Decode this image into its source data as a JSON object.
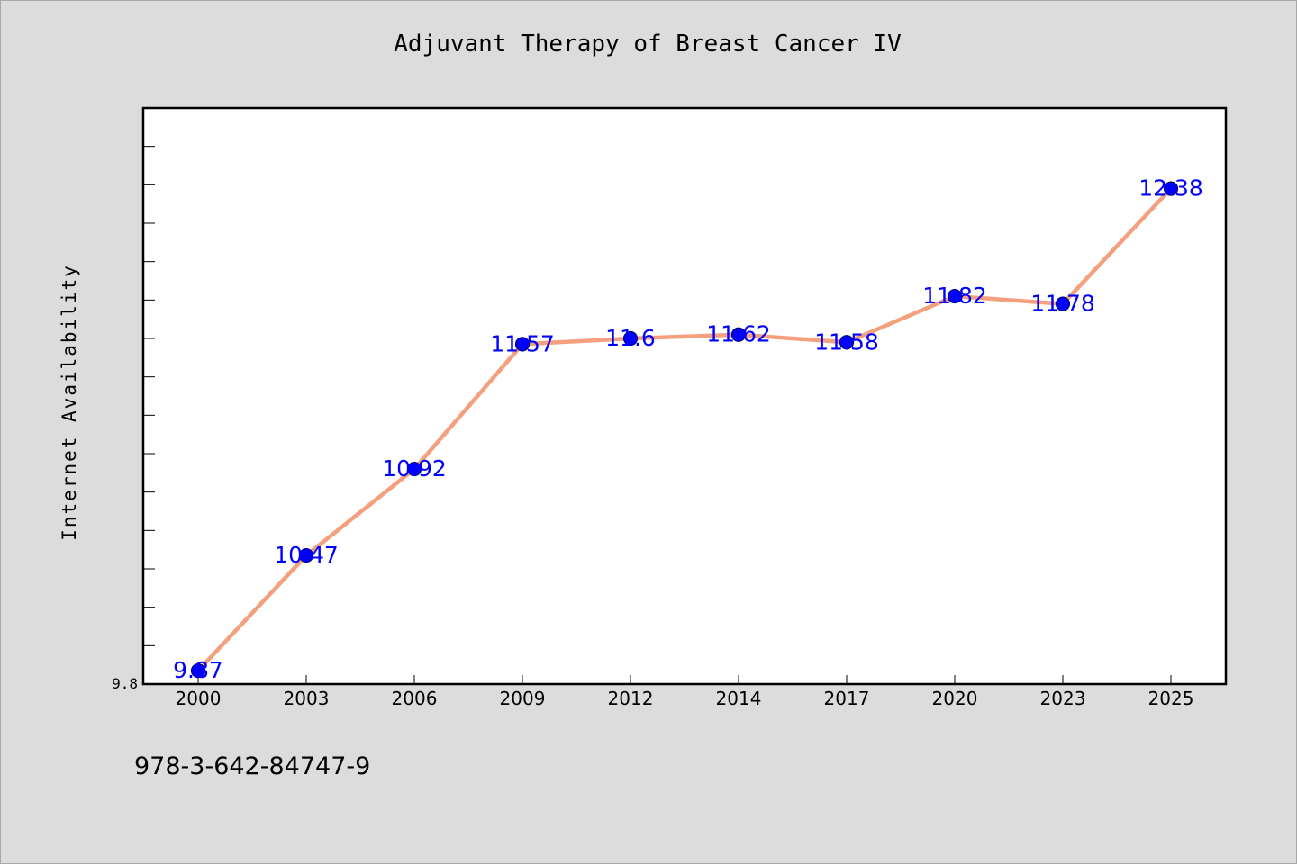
{
  "chart_data": {
    "type": "line",
    "title": "Adjuvant Therapy of Breast Cancer IV",
    "ylabel": "Internet Availability",
    "xlabel": "",
    "categories": [
      "2000",
      "2003",
      "2006",
      "2009",
      "2012",
      "2014",
      "2017",
      "2020",
      "2023",
      "2025"
    ],
    "values": [
      9.87,
      10.47,
      10.92,
      11.57,
      11.6,
      11.62,
      11.58,
      11.82,
      11.78,
      12.38
    ],
    "data_labels": [
      "9.87",
      "10.47",
      "10.92",
      "11.57",
      "11.6",
      "11.62",
      "11.58",
      "11.82",
      "11.78",
      "12.38"
    ],
    "y_tick_labels": [
      "9.8"
    ],
    "ylim": [
      9.8,
      12.8
    ],
    "grid": false,
    "legend": "none",
    "colors": {
      "line": "#f4a07e",
      "marker": "#0000ff",
      "marker_edge": "#000080",
      "data_label": "#0000ff",
      "background": "#dcdcdc",
      "plot_background": "#ffffff"
    }
  },
  "footer": {
    "isbn": "978-3-642-84747-9"
  }
}
